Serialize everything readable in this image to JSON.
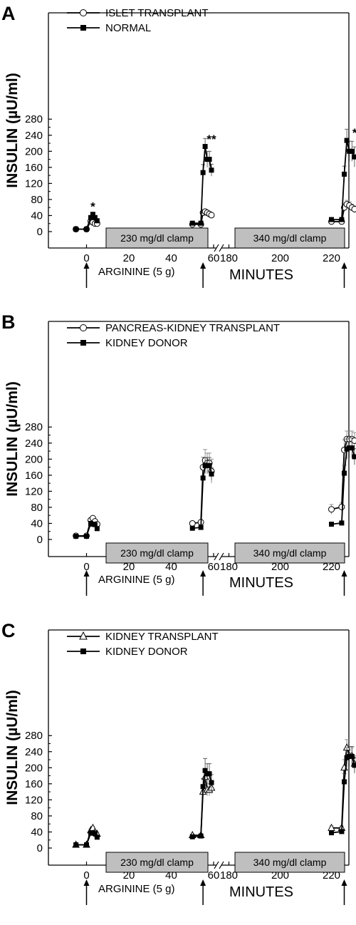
{
  "chart_data": [
    {
      "type": "line",
      "panel": "A",
      "ylabel": "INSULIN (µU/ml)",
      "xlabel": "MINUTES",
      "ylim": [
        0,
        280
      ],
      "yticks": [
        0,
        40,
        80,
        120,
        160,
        200,
        240,
        280
      ],
      "xticks": [
        0,
        20,
        40,
        60,
        180,
        200,
        220
      ],
      "axis_break": "60-180",
      "legend_position": "top-left",
      "annotations": {
        "arginine": "ARGININE (5 g)",
        "arginine_times": [
          0,
          55,
          225
        ],
        "clamps": [
          "230 mg/dl clamp",
          "340 mg/dl clamp"
        ],
        "significance": [
          {
            "x": 3,
            "y": 52,
            "text": "*"
          },
          {
            "x": 59,
            "y": 220,
            "text": "**"
          },
          {
            "x": 230,
            "y": 236,
            "text": "**"
          }
        ]
      },
      "series": [
        {
          "name": "ISLET TRANSPLANT",
          "marker": "circle-open",
          "segments": [
            {
              "x": [
                -5,
                0,
                2,
                3,
                4,
                5
              ],
              "y": [
                6,
                6,
                26,
                23,
                20,
                20
              ],
              "err": [
                0,
                0,
                4,
                3,
                3,
                3
              ]
            },
            {
              "x": [
                50,
                54,
                55,
                56,
                57,
                58,
                59
              ],
              "y": [
                18,
                18,
                47,
                50,
                47,
                44,
                41
              ],
              "err": [
                2,
                2,
                5,
                5,
                5,
                5,
                4
              ]
            },
            {
              "x": [
                220,
                224,
                225,
                226,
                227,
                228,
                229
              ],
              "y": [
                25,
                25,
                60,
                68,
                65,
                60,
                56
              ],
              "err": [
                2,
                2,
                10,
                10,
                10,
                8,
                8
              ]
            }
          ]
        },
        {
          "name": "NORMAL",
          "marker": "square-filled",
          "segments": [
            {
              "x": [
                -5,
                0,
                2,
                3,
                4,
                5
              ],
              "y": [
                6,
                6,
                35,
                43,
                35,
                27
              ],
              "err": [
                0,
                0,
                5,
                5,
                5,
                5
              ]
            },
            {
              "x": [
                50,
                54,
                55,
                56,
                57,
                58,
                59
              ],
              "y": [
                21,
                21,
                147,
                212,
                180,
                180,
                153
              ],
              "err": [
                3,
                3,
                20,
                20,
                20,
                20,
                15
              ]
            },
            {
              "x": [
                220,
                224,
                225,
                226,
                227,
                228,
                229
              ],
              "y": [
                30,
                30,
                143,
                227,
                200,
                200,
                186
              ],
              "err": [
                3,
                3,
                20,
                28,
                25,
                25,
                25
              ]
            }
          ]
        }
      ]
    },
    {
      "type": "line",
      "panel": "B",
      "ylabel": "INSULIN (µU/ml)",
      "xlabel": "MINUTES",
      "ylim": [
        0,
        280
      ],
      "yticks": [
        0,
        40,
        80,
        120,
        160,
        200,
        240,
        280
      ],
      "xticks": [
        0,
        20,
        40,
        60,
        180,
        200,
        220
      ],
      "axis_break": "60-180",
      "legend_position": "top-left",
      "annotations": {
        "arginine": "ARGININE (5 g)",
        "arginine_times": [
          0,
          55,
          225
        ],
        "clamps": [
          "230 mg/dl clamp",
          "340 mg/dl clamp"
        ]
      },
      "series": [
        {
          "name": "PANCREAS-KIDNEY TRANSPLANT",
          "marker": "circle-open",
          "segments": [
            {
              "x": [
                -5,
                0,
                2,
                3,
                4,
                5
              ],
              "y": [
                9,
                9,
                48,
                53,
                45,
                38
              ],
              "err": [
                0,
                0,
                5,
                5,
                5,
                5
              ]
            },
            {
              "x": [
                50,
                54,
                55,
                56,
                57,
                58,
                59
              ],
              "y": [
                40,
                43,
                180,
                197,
                190,
                190,
                170
              ],
              "err": [
                4,
                4,
                25,
                27,
                25,
                25,
                30
              ]
            },
            {
              "x": [
                220,
                224,
                225,
                226,
                227,
                228,
                229
              ],
              "y": [
                75,
                81,
                223,
                250,
                250,
                250,
                246
              ],
              "err": [
                12,
                10,
                25,
                20,
                20,
                20,
                20
              ]
            }
          ]
        },
        {
          "name": "KIDNEY DONOR",
          "marker": "square-filled",
          "segments": [
            {
              "x": [
                -5,
                0,
                2,
                3,
                4,
                5
              ],
              "y": [
                8,
                8,
                40,
                38,
                37,
                27
              ],
              "err": [
                0,
                0,
                4,
                4,
                4,
                4
              ]
            },
            {
              "x": [
                50,
                54,
                55,
                56,
                57,
                58,
                59
              ],
              "y": [
                28,
                30,
                153,
                184,
                184,
                184,
                163
              ],
              "err": [
                3,
                3,
                20,
                20,
                20,
                20,
                15
              ]
            },
            {
              "x": [
                220,
                224,
                225,
                226,
                227,
                228,
                229
              ],
              "y": [
                38,
                41,
                165,
                225,
                228,
                228,
                206
              ],
              "err": [
                3,
                3,
                20,
                25,
                25,
                25,
                20
              ]
            }
          ]
        }
      ]
    },
    {
      "type": "line",
      "panel": "C",
      "ylabel": "INSULIN (µU/ml)",
      "xlabel": "MINUTES",
      "ylim": [
        0,
        280
      ],
      "yticks": [
        0,
        40,
        80,
        120,
        160,
        200,
        240,
        280
      ],
      "xticks": [
        0,
        20,
        40,
        60,
        180,
        200,
        220
      ],
      "axis_break": "60-180",
      "legend_position": "top-left",
      "annotations": {
        "arginine": "ARGININE (5 g)",
        "arginine_times": [
          0,
          55,
          225
        ],
        "clamps": [
          "230 mg/dl clamp",
          "340 mg/dl clamp"
        ]
      },
      "series": [
        {
          "name": "KIDNEY TRANSPLANT",
          "marker": "triangle-open",
          "segments": [
            {
              "x": [
                -5,
                0,
                2,
                3,
                4,
                5
              ],
              "y": [
                8,
                8,
                44,
                50,
                40,
                35
              ],
              "err": [
                0,
                0,
                4,
                4,
                4,
                4
              ]
            },
            {
              "x": [
                50,
                54,
                55,
                56,
                57,
                58,
                59
              ],
              "y": [
                32,
                32,
                140,
                177,
                145,
                145,
                150
              ],
              "err": [
                3,
                3,
                15,
                20,
                15,
                15,
                15
              ]
            },
            {
              "x": [
                220,
                224,
                225,
                226,
                227,
                228,
                229
              ],
              "y": [
                50,
                50,
                200,
                250,
                230,
                230,
                210
              ],
              "err": [
                5,
                5,
                20,
                20,
                20,
                20,
                20
              ]
            }
          ]
        },
        {
          "name": "KIDNEY DONOR",
          "marker": "square-filled",
          "segments": [
            {
              "x": [
                -5,
                0,
                2,
                3,
                4,
                5
              ],
              "y": [
                8,
                8,
                37,
                38,
                36,
                27
              ],
              "err": [
                0,
                0,
                4,
                4,
                4,
                4
              ]
            },
            {
              "x": [
                50,
                54,
                55,
                56,
                57,
                58,
                59
              ],
              "y": [
                28,
                30,
                153,
                193,
                185,
                185,
                163
              ],
              "err": [
                3,
                3,
                20,
                30,
                25,
                25,
                20
              ]
            },
            {
              "x": [
                220,
                224,
                225,
                226,
                227,
                228,
                229
              ],
              "y": [
                38,
                41,
                165,
                225,
                228,
                228,
                206
              ],
              "err": [
                3,
                3,
                20,
                25,
                25,
                25,
                20
              ]
            }
          ]
        }
      ]
    }
  ]
}
